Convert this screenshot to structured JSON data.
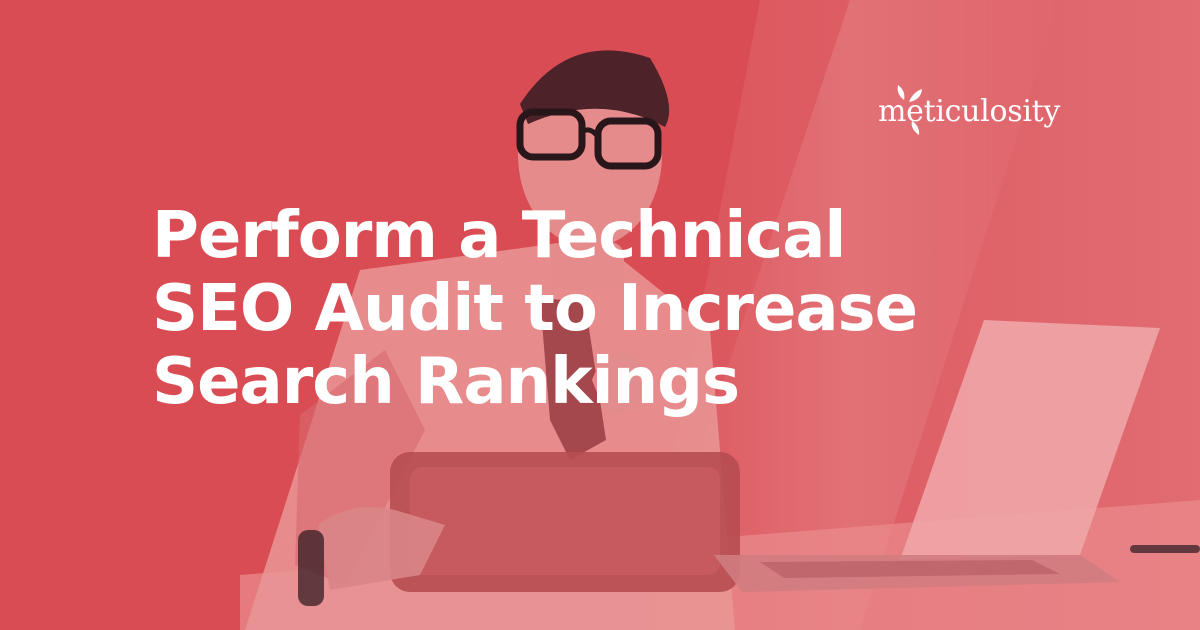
{
  "image": {
    "title_lines": [
      "Perform a Technical",
      "SEO Audit to Increase",
      "Search Rankings"
    ],
    "brand": {
      "name": "meticulosity",
      "icon": "sprout-leaves-icon"
    },
    "scene": {
      "subject": "man-with-glasses-holding-clipboard",
      "props": [
        "laptop-icon",
        "clipboard-icon",
        "desk"
      ]
    },
    "colors": {
      "overlay_red": "#e25a5f",
      "text": "#ffffff"
    }
  }
}
